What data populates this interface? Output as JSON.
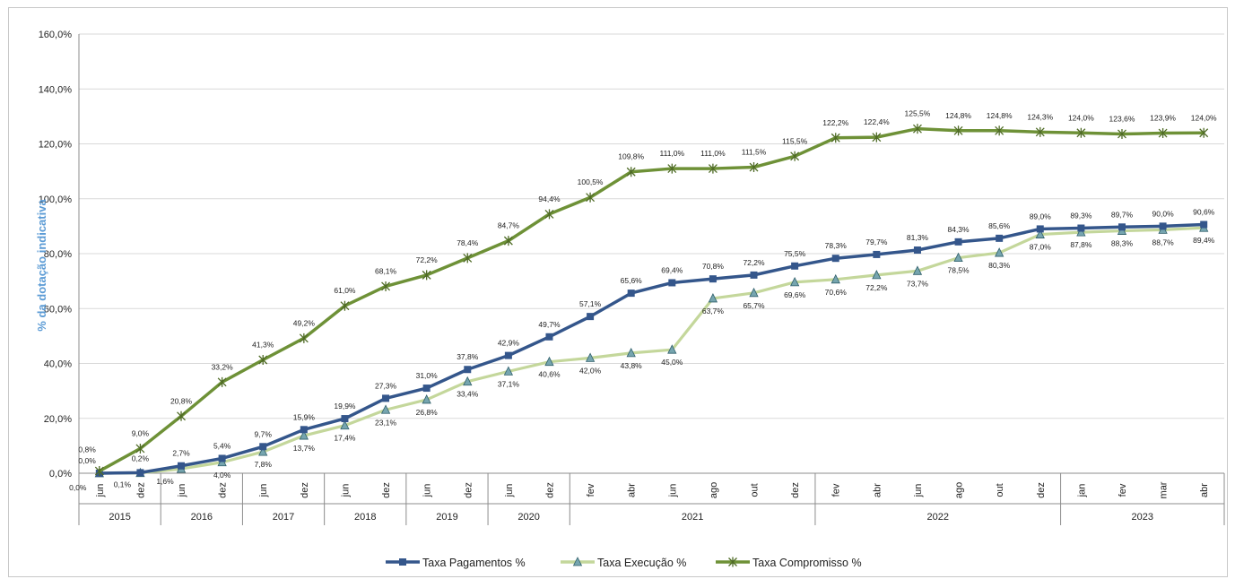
{
  "chart_data": {
    "type": "line",
    "ylabel": "% da dotação indicativa",
    "ylim": [
      0,
      160
    ],
    "y_ticks": [
      "0,0%",
      "20,0%",
      "40,0%",
      "60,0%",
      "80,0%",
      "100,0%",
      "120,0%",
      "140,0%",
      "160,0%"
    ],
    "grid": true,
    "legend_position": "bottom",
    "categories": [
      "jun",
      "dez",
      "jun",
      "dez",
      "jun",
      "dez",
      "jun",
      "dez",
      "jun",
      "dez",
      "jun",
      "dez",
      "fev",
      "abr",
      "jun",
      "ago",
      "out",
      "dez",
      "fev",
      "abr",
      "jun",
      "ago",
      "out",
      "dez",
      "jan",
      "fev",
      "mar",
      "abr"
    ],
    "years": [
      {
        "label": "2015",
        "start": 0,
        "end": 1
      },
      {
        "label": "2016",
        "start": 2,
        "end": 3
      },
      {
        "label": "2017",
        "start": 4,
        "end": 5
      },
      {
        "label": "2018",
        "start": 6,
        "end": 7
      },
      {
        "label": "2019",
        "start": 8,
        "end": 9
      },
      {
        "label": "2020",
        "start": 10,
        "end": 11
      },
      {
        "label": "2021",
        "start": 12,
        "end": 17
      },
      {
        "label": "2022",
        "start": 18,
        "end": 23
      },
      {
        "label": "2023",
        "start": 24,
        "end": 27
      }
    ],
    "series": [
      {
        "name": "Taxa Pagamentos %",
        "color": "#34568b",
        "marker": "square",
        "values": [
          0.0,
          0.2,
          2.7,
          5.4,
          9.7,
          15.9,
          19.9,
          27.3,
          31.0,
          37.8,
          42.9,
          49.7,
          57.1,
          65.6,
          69.4,
          70.8,
          72.2,
          75.5,
          78.3,
          79.7,
          81.3,
          84.3,
          85.6,
          89.0,
          89.3,
          89.7,
          90.0,
          90.6
        ],
        "labels": [
          "0,0%",
          "0,2%",
          "2,7%",
          "5,4%",
          "9,7%",
          "15,9%",
          "19,9%",
          "27,3%",
          "31,0%",
          "37,8%",
          "42,9%",
          "49,7%",
          "57,1%",
          "65,6%",
          "69,4%",
          "70,8%",
          "72,2%",
          "75,5%",
          "78,3%",
          "79,7%",
          "81,3%",
          "84,3%",
          "85,6%",
          "89,0%",
          "89,3%",
          "89,7%",
          "90,0%",
          "90,6%"
        ]
      },
      {
        "name": "Taxa Execução %",
        "color": "#c4d79b",
        "marker": "triangle",
        "values": [
          0.0,
          0.1,
          1.6,
          4.0,
          7.8,
          13.7,
          17.4,
          23.1,
          26.8,
          33.4,
          37.1,
          40.6,
          42.0,
          43.8,
          45.0,
          63.7,
          65.7,
          69.6,
          70.6,
          72.2,
          73.7,
          78.5,
          80.3,
          87.0,
          87.8,
          88.3,
          88.7,
          89.4
        ],
        "labels": [
          "0,0%",
          "0,1%",
          "1,6%",
          "4,0%",
          "7,8%",
          "13,7%",
          "17,4%",
          "23,1%",
          "26,8%",
          "33,4%",
          "37,1%",
          "40,6%",
          "42,0%",
          "43,8%",
          "45,0%",
          "63,7%",
          "65,7%",
          "69,6%",
          "70,6%",
          "72,2%",
          "73,7%",
          "78,5%",
          "80,3%",
          "87,0%",
          "87,8%",
          "88,3%",
          "88,7%",
          "89,4%"
        ]
      },
      {
        "name": "Taxa Compromisso %",
        "color": "#6e9137",
        "marker": "star",
        "values": [
          0.8,
          9.0,
          20.8,
          33.2,
          41.3,
          49.2,
          61.0,
          68.1,
          72.2,
          78.4,
          84.7,
          94.4,
          100.5,
          109.8,
          111.0,
          111.0,
          111.5,
          115.5,
          122.2,
          122.4,
          125.5,
          124.8,
          124.8,
          124.3,
          124.0,
          123.6,
          123.9,
          124.0
        ],
        "labels": [
          "0,8%",
          "9,0%",
          "20,8%",
          "33,2%",
          "41,3%",
          "49,2%",
          "61,0%",
          "68,1%",
          "72,2%",
          "78,4%",
          "84,7%",
          "94,4%",
          "100,5%",
          "109,8%",
          "111,0%",
          "111,0%",
          "111,5%",
          "115,5%",
          "122,2%",
          "122,4%",
          "125,5%",
          "124,8%",
          "124,8%",
          "124,3%",
          "124,0%",
          "123,6%",
          "123,9%",
          "124,0%"
        ]
      }
    ]
  }
}
